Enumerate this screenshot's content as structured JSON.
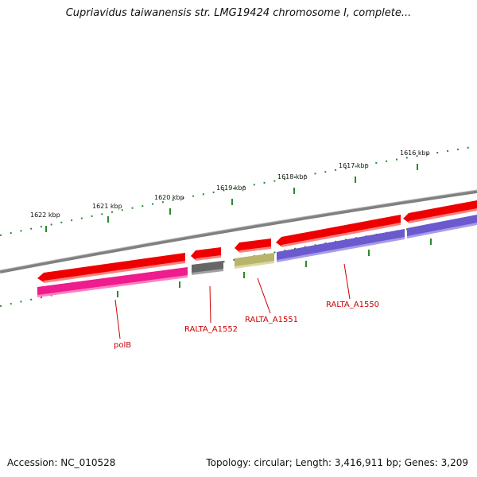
{
  "title": "Cupriavidus taiwanensis str. LMG19424 chromosome I, complete...",
  "footer": {
    "accession": "Accession: NC_010528",
    "summary": "Topology: circular; Length: 3,416,911 bp; Genes: 3,209"
  },
  "kbp_labels": [
    "1622 kbp",
    "1621 kbp",
    "1620 kbp",
    "1619 kbp",
    "1618 kbp",
    "1617 kbp",
    "1616 kbp"
  ],
  "gene_labels": [
    "polB",
    "RALTA_A1552",
    "RALTA_A1551",
    "RALTA_A1550"
  ],
  "colors": {
    "backbone": "#808080",
    "forward_cds": "#ee0000",
    "gene_polB": "#ee1c8c",
    "gene_A1552": "#666666",
    "gene_A1551": "#b8b46c",
    "gene_A1550": "#6a5acd",
    "ticks": "#2a8a2a",
    "label": "#cc0000"
  }
}
